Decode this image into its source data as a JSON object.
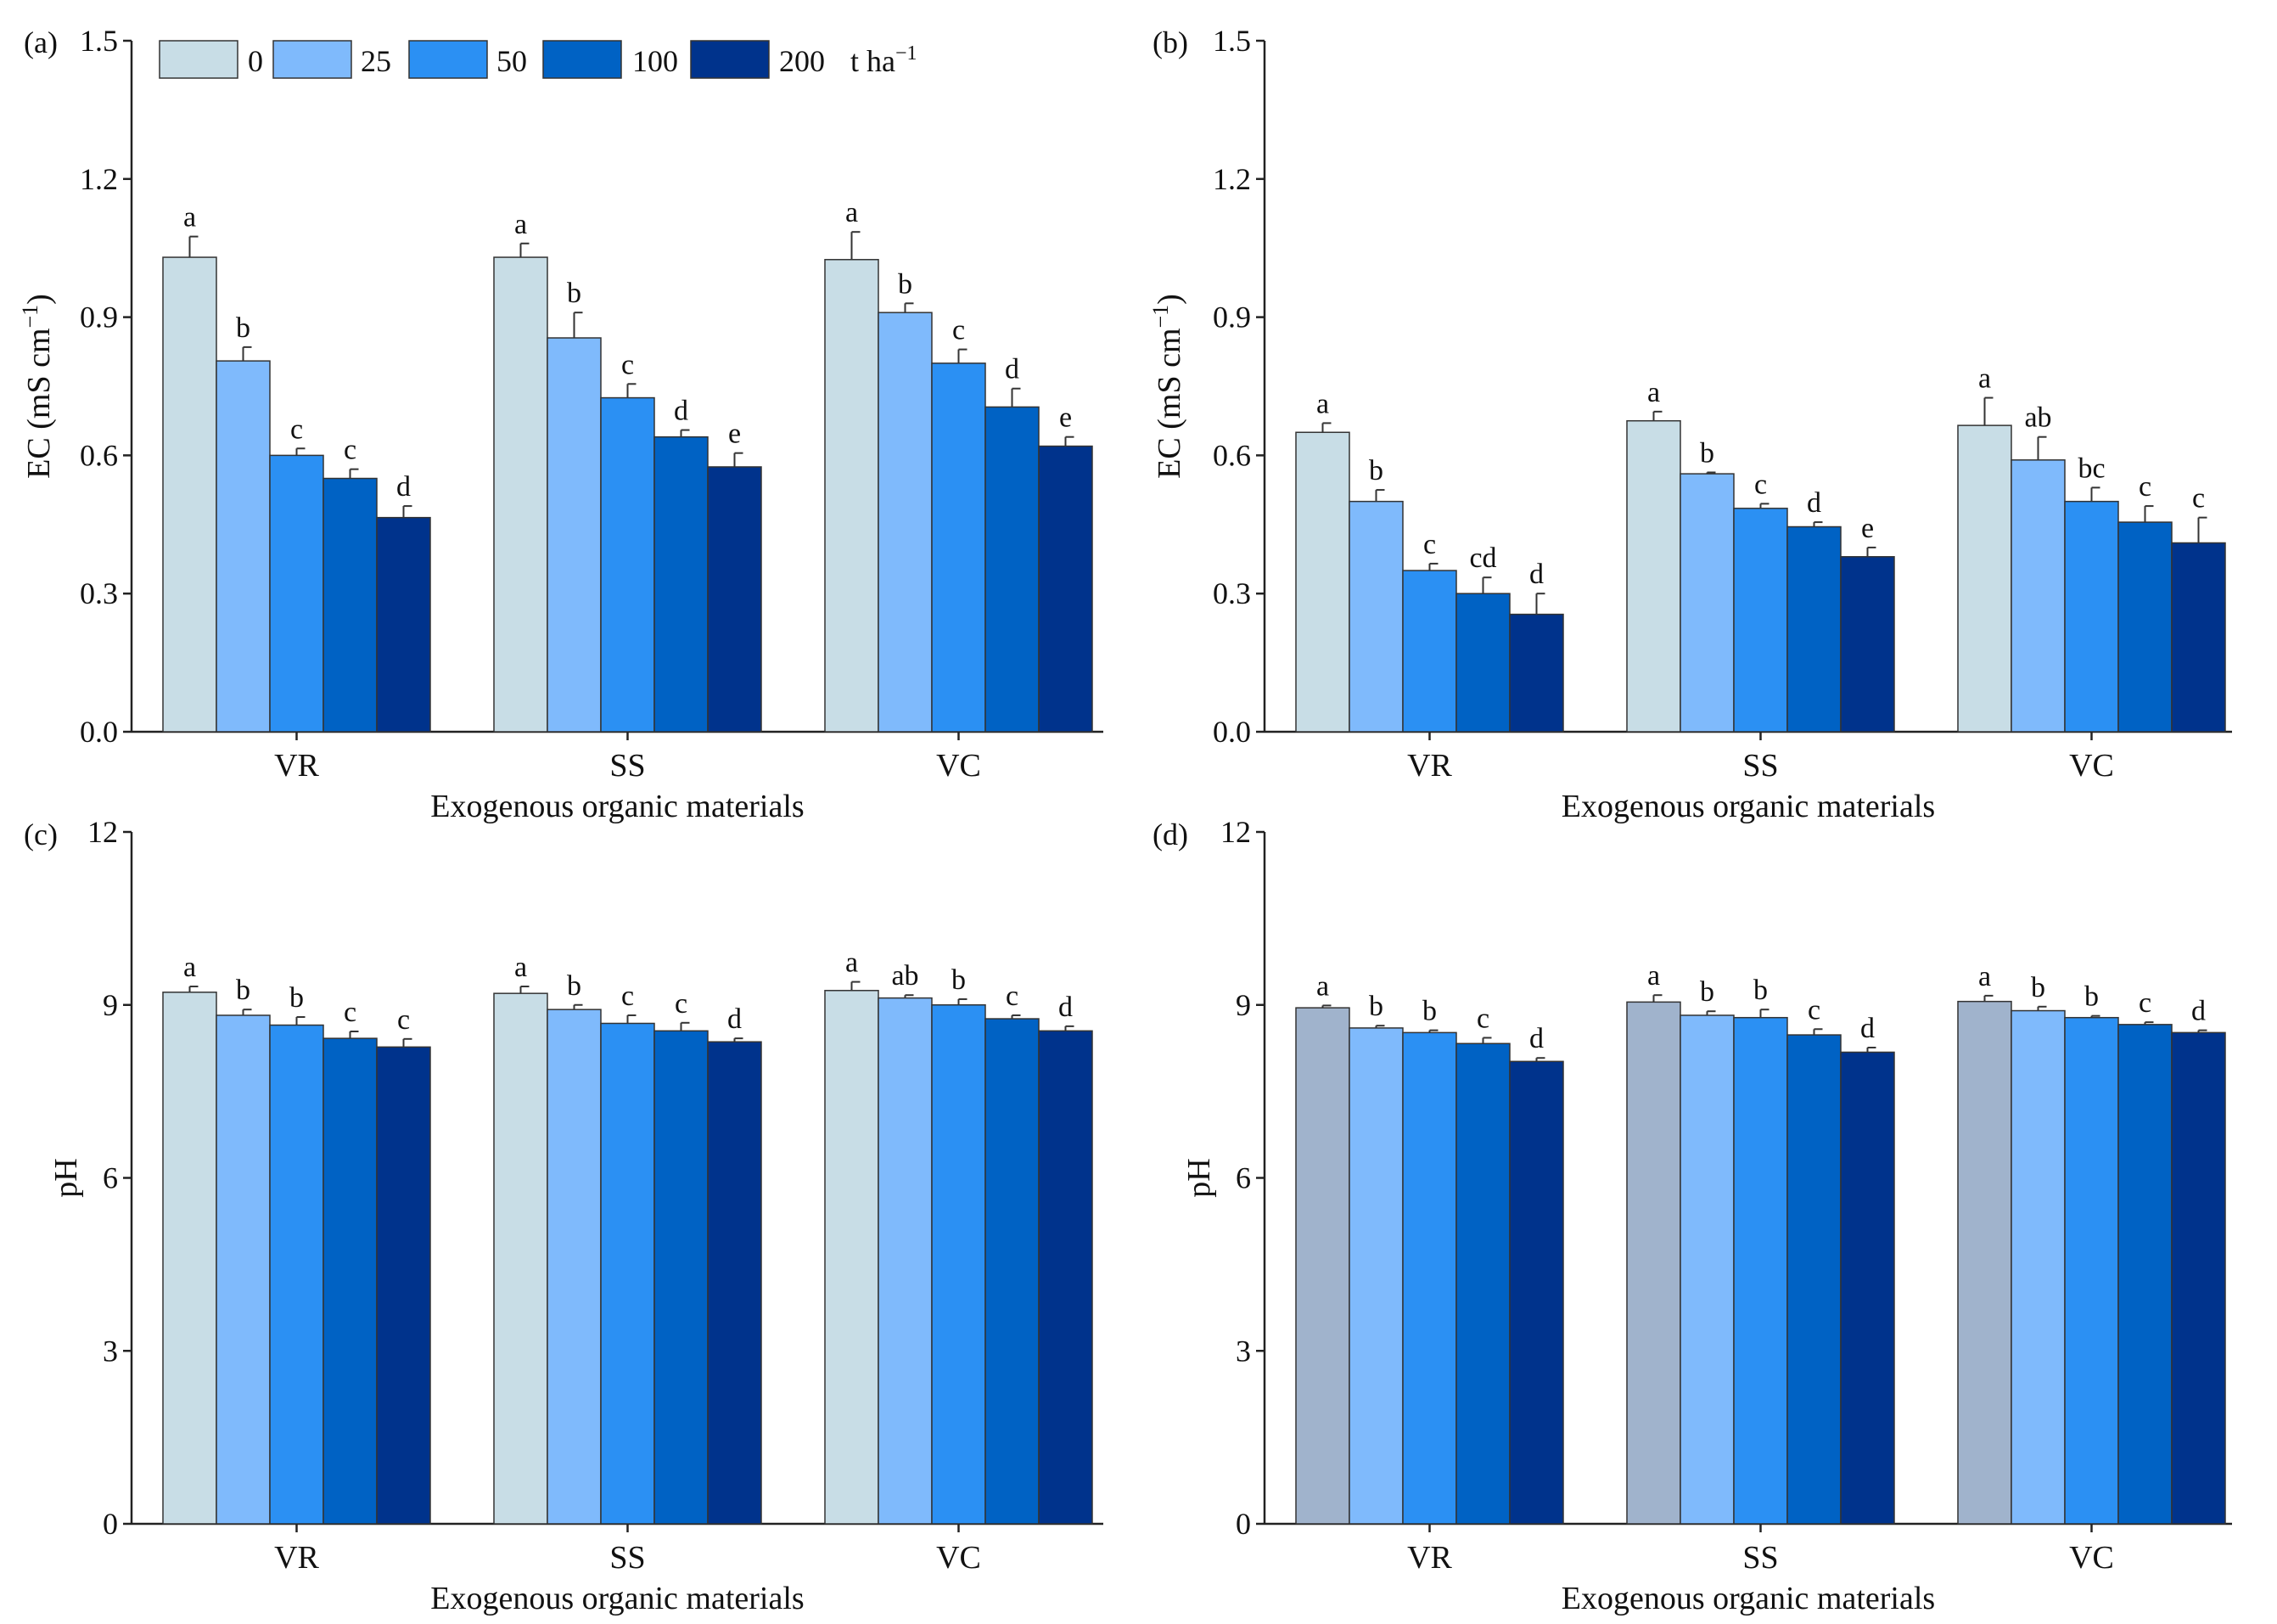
{
  "legend": {
    "items": [
      "0",
      "25",
      "50",
      "100",
      "200"
    ],
    "unit_base": "t ha",
    "unit_sup": "−1"
  },
  "colors": {
    "dose_colors": [
      "#c8dde6",
      "#7fbafc",
      "#2b90f3",
      "#0062c4",
      "#00338c"
    ],
    "control_color_panel_d": "#a0b3cc"
  },
  "chart_data": [
    {
      "panel": "(a)",
      "type": "bar",
      "xlabel": "Exogenous organic materials",
      "ylabel": "EC (mS cm",
      "ylabel_sup": "−1",
      "ylabel_close": ")",
      "ylim": [
        0,
        1.5
      ],
      "yticks": [
        "0.0",
        "0.3",
        "0.6",
        "0.9",
        "1.2",
        "1.5"
      ],
      "categories": [
        "VR",
        "SS",
        "VC"
      ],
      "series": [
        {
          "name": "0",
          "values": [
            1.03,
            1.03,
            1.025
          ],
          "errors": [
            0.045,
            0.03,
            0.06
          ],
          "letters": [
            "a",
            "a",
            "a"
          ]
        },
        {
          "name": "25",
          "values": [
            0.805,
            0.855,
            0.91
          ],
          "errors": [
            0.03,
            0.055,
            0.02
          ],
          "letters": [
            "b",
            "b",
            "b"
          ]
        },
        {
          "name": "50",
          "values": [
            0.6,
            0.725,
            0.8
          ],
          "errors": [
            0.015,
            0.03,
            0.03
          ],
          "letters": [
            "c",
            "c",
            "c"
          ]
        },
        {
          "name": "100",
          "values": [
            0.55,
            0.64,
            0.705
          ],
          "errors": [
            0.02,
            0.015,
            0.04
          ],
          "letters": [
            "c",
            "d",
            "d"
          ]
        },
        {
          "name": "200",
          "values": [
            0.465,
            0.575,
            0.62
          ],
          "errors": [
            0.025,
            0.03,
            0.02
          ],
          "letters": [
            "d",
            "e",
            "e"
          ]
        }
      ]
    },
    {
      "panel": "(b)",
      "type": "bar",
      "xlabel": "Exogenous organic materials",
      "ylabel": "EC (mS cm",
      "ylabel_sup": "−1",
      "ylabel_close": ")",
      "ylim": [
        0,
        1.5
      ],
      "yticks": [
        "0.0",
        "0.3",
        "0.6",
        "0.9",
        "1.2",
        "1.5"
      ],
      "categories": [
        "VR",
        "SS",
        "VC"
      ],
      "series": [
        {
          "name": "0",
          "values": [
            0.65,
            0.675,
            0.665
          ],
          "errors": [
            0.02,
            0.02,
            0.06
          ],
          "letters": [
            "a",
            "a",
            "a"
          ]
        },
        {
          "name": "25",
          "values": [
            0.5,
            0.56,
            0.59
          ],
          "errors": [
            0.025,
            0.003,
            0.05
          ],
          "letters": [
            "b",
            "b",
            "ab"
          ]
        },
        {
          "name": "50",
          "values": [
            0.35,
            0.485,
            0.5
          ],
          "errors": [
            0.015,
            0.01,
            0.03
          ],
          "letters": [
            "c",
            "c",
            "bc"
          ]
        },
        {
          "name": "100",
          "values": [
            0.3,
            0.445,
            0.455
          ],
          "errors": [
            0.035,
            0.01,
            0.035
          ],
          "letters": [
            "cd",
            "d",
            "c"
          ]
        },
        {
          "name": "200",
          "values": [
            0.255,
            0.38,
            0.41
          ],
          "errors": [
            0.045,
            0.02,
            0.055
          ],
          "letters": [
            "d",
            "e",
            "c"
          ]
        }
      ]
    },
    {
      "panel": "(c)",
      "type": "bar",
      "xlabel": "Exogenous organic materials",
      "ylabel": "pH",
      "ylim": [
        0,
        12
      ],
      "yticks": [
        "0",
        "3",
        "6",
        "9",
        "12"
      ],
      "categories": [
        "VR",
        "SS",
        "VC"
      ],
      "series": [
        {
          "name": "0",
          "values": [
            9.22,
            9.2,
            9.25
          ],
          "errors": [
            0.1,
            0.12,
            0.15
          ],
          "letters": [
            "a",
            "a",
            "a"
          ]
        },
        {
          "name": "25",
          "values": [
            8.82,
            8.92,
            9.12
          ],
          "errors": [
            0.1,
            0.08,
            0.05
          ],
          "letters": [
            "b",
            "b",
            "ab"
          ]
        },
        {
          "name": "50",
          "values": [
            8.65,
            8.68,
            9.0
          ],
          "errors": [
            0.14,
            0.14,
            0.1
          ],
          "letters": [
            "b",
            "c",
            "b"
          ]
        },
        {
          "name": "100",
          "values": [
            8.42,
            8.55,
            8.76
          ],
          "errors": [
            0.12,
            0.14,
            0.06
          ],
          "letters": [
            "c",
            "c",
            "c"
          ]
        },
        {
          "name": "200",
          "values": [
            8.27,
            8.36,
            8.55
          ],
          "errors": [
            0.14,
            0.06,
            0.08
          ],
          "letters": [
            "c",
            "d",
            "d"
          ]
        }
      ]
    },
    {
      "panel": "(d)",
      "type": "bar",
      "xlabel": "Exogenous organic materials",
      "ylabel": "pH",
      "ylim": [
        0,
        12
      ],
      "yticks": [
        "0",
        "3",
        "6",
        "9",
        "12"
      ],
      "categories": [
        "VR",
        "SS",
        "VC"
      ],
      "series": [
        {
          "name": "0",
          "values": [
            8.95,
            9.05,
            9.06
          ],
          "errors": [
            0.04,
            0.12,
            0.1
          ],
          "letters": [
            "a",
            "a",
            "a"
          ]
        },
        {
          "name": "25",
          "values": [
            8.6,
            8.82,
            8.9
          ],
          "errors": [
            0.04,
            0.07,
            0.07
          ],
          "letters": [
            "b",
            "b",
            "b"
          ]
        },
        {
          "name": "50",
          "values": [
            8.52,
            8.78,
            8.78
          ],
          "errors": [
            0.04,
            0.14,
            0.03
          ],
          "letters": [
            "b",
            "b",
            "b"
          ]
        },
        {
          "name": "100",
          "values": [
            8.33,
            8.48,
            8.66
          ],
          "errors": [
            0.1,
            0.1,
            0.04
          ],
          "letters": [
            "c",
            "c",
            "c"
          ]
        },
        {
          "name": "200",
          "values": [
            8.02,
            8.18,
            8.52
          ],
          "errors": [
            0.06,
            0.08,
            0.04
          ],
          "letters": [
            "d",
            "d",
            "d"
          ]
        }
      ]
    }
  ]
}
